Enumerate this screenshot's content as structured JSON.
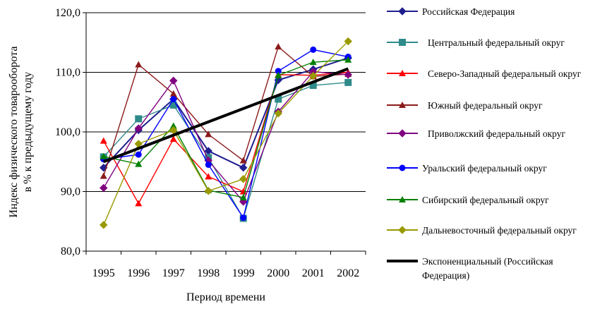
{
  "chart_data": {
    "type": "line",
    "title": "",
    "xlabel": "Период времени",
    "ylabel_lines": [
      "Индекс физического товарооборота",
      "в % к предыдущему году"
    ],
    "x": [
      "1995",
      "1996",
      "1997",
      "1998",
      "1999",
      "2000",
      "2001",
      "2002"
    ],
    "ylim": [
      80,
      120
    ],
    "yticks": [
      "80,0",
      "90,0",
      "100,0",
      "110,0",
      "120,0"
    ],
    "grid": "horizontal",
    "legend_position": "right",
    "series": [
      {
        "name": "Российская Федерация",
        "color": "#1f1f8f",
        "marker": "diamond",
        "values": [
          94.0,
          100.3,
          105.5,
          96.8,
          94.0,
          108.7,
          110.5,
          112.4
        ]
      },
      {
        "name": "Центральный федеральный округ",
        "color": "#2f8a8a",
        "marker": "square",
        "values": [
          95.8,
          102.2,
          104.5,
          95.7,
          85.5,
          105.5,
          107.8,
          108.3
        ]
      },
      {
        "name": "Северо-Западный федеральный округ",
        "color": "#ff0000",
        "marker": "triangle",
        "values": [
          98.5,
          88.0,
          98.8,
          92.5,
          90.0,
          109.6,
          109.5,
          110.0
        ]
      },
      {
        "name": "Южный федеральный округ",
        "color": "#8b1a1a",
        "marker": "triangle",
        "values": [
          92.6,
          111.3,
          106.4,
          99.6,
          95.2,
          114.3,
          109.3,
          109.7
        ]
      },
      {
        "name": "Приволжский федеральный округ",
        "color": "#800080",
        "marker": "diamond",
        "values": [
          90.6,
          100.6,
          108.6,
          95.2,
          88.3,
          103.4,
          110.1,
          109.6
        ]
      },
      {
        "name": "Уральский федеральный округ",
        "color": "#0000ff",
        "marker": "circle",
        "values": [
          95.4,
          96.2,
          105.5,
          94.5,
          85.6,
          110.2,
          113.8,
          112.6
        ]
      },
      {
        "name": "Сибирский федеральный округ",
        "color": "#008000",
        "marker": "triangle",
        "values": [
          95.9,
          94.6,
          101.0,
          90.2,
          89.0,
          109.5,
          111.7,
          112.1
        ]
      },
      {
        "name": "Дальневосточный федеральный округ",
        "color": "#999900",
        "marker": "diamond",
        "values": [
          84.4,
          98.0,
          100.3,
          90.1,
          92.1,
          103.1,
          109.4,
          115.2
        ]
      },
      {
        "name": "Экспоненциальный (Российская Федерация)",
        "color": "#000000",
        "marker": "none",
        "trend": true,
        "values": [
          95.0,
          97.0,
          99.0,
          101.3,
          103.6,
          105.9,
          108.2,
          110.6
        ]
      }
    ]
  }
}
